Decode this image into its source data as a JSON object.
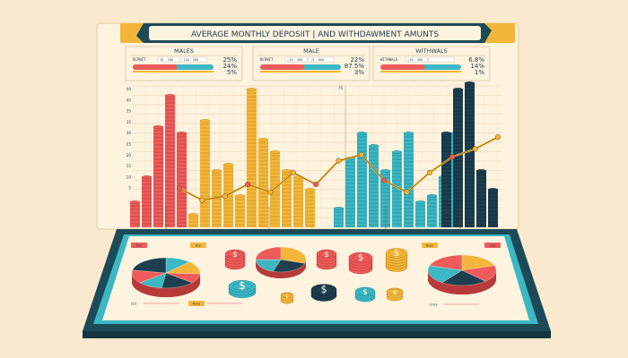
{
  "title": "AVERAGE MONTHLY DEPOSIIT | AND WITHDAWMENT AMUNTS",
  "colors": {
    "background": "#fbe9cf",
    "frame": "#1d4a57",
    "red": "#ef5b5b",
    "yellow": "#f4b63a",
    "teal": "#3cb7c4",
    "navy": "#1d3f50",
    "panel": "#fdf3df"
  },
  "panels": [
    {
      "title": "MALES",
      "field_label": "DCPWIT",
      "field_values": [
        "10.  500",
        "110. 300"
      ],
      "pcts": [
        "25%",
        "24%",
        "5%"
      ]
    },
    {
      "title": "MALE",
      "field_label": "DCPWIT",
      "field_values": [
        "(10. 300",
        "(5.  800"
      ],
      "pcts": [
        "22%",
        "87.5%",
        "3%"
      ]
    },
    {
      "title": "WITHWALS",
      "field_label": "WITHWALS",
      "field_values": [
        "(10.  400",
        ""
      ],
      "pcts": [
        "6.8%",
        "14%",
        "1%"
      ]
    }
  ],
  "legend_tags": {
    "top": [
      "Dsa",
      "Ete",
      "",
      "",
      "Bess",
      "Ees"
    ],
    "bottom": [
      "225",
      "Rate",
      "Ones"
    ]
  },
  "chart_data": {
    "type": "bar",
    "ytick_labels": [
      "40",
      "40",
      "35",
      "35",
      "30",
      "25",
      "20",
      "15",
      "10",
      "5"
    ],
    "secondary_label": "75",
    "series": [
      {
        "color": "red",
        "values": [
          8,
          16,
          32,
          42,
          30
        ]
      },
      {
        "color": "yellow",
        "values": [
          4,
          34,
          18,
          20,
          10,
          44,
          28,
          24,
          18,
          16,
          12
        ]
      },
      {
        "color": "teal",
        "values": [
          6,
          22,
          30,
          26,
          18,
          24,
          30,
          8,
          10,
          16,
          30
        ]
      },
      {
        "color": "navy",
        "values": [
          30,
          44,
          46,
          18,
          12
        ]
      }
    ],
    "trend_line": [
      18,
      12,
      14,
      20,
      16,
      26,
      20,
      32,
      35,
      22,
      16,
      26,
      34,
      38,
      44
    ]
  },
  "pie_charts": [
    {
      "slices": [
        0.12,
        0.14,
        0.1,
        0.16,
        0.12,
        0.14,
        0.22
      ],
      "colors": [
        "#3cb7c4",
        "#f4b63a",
        "#ef5b5b",
        "#1d3f50",
        "#3cb7c4",
        "#ef5b5b",
        "#1d3f50"
      ]
    },
    {
      "slices": [
        0.3,
        0.25,
        0.2,
        0.25
      ],
      "colors": [
        "#f4b63a",
        "#1d3f50",
        "#3cb7c4",
        "#ef5b5b"
      ]
    },
    {
      "slices": [
        0.2,
        0.18,
        0.22,
        0.2,
        0.2
      ],
      "colors": [
        "#f4b63a",
        "#ef5b5b",
        "#1d3f50",
        "#3cb7c4",
        "#ef5b5b"
      ]
    }
  ],
  "coin_icon": "dollar-coin-icon"
}
